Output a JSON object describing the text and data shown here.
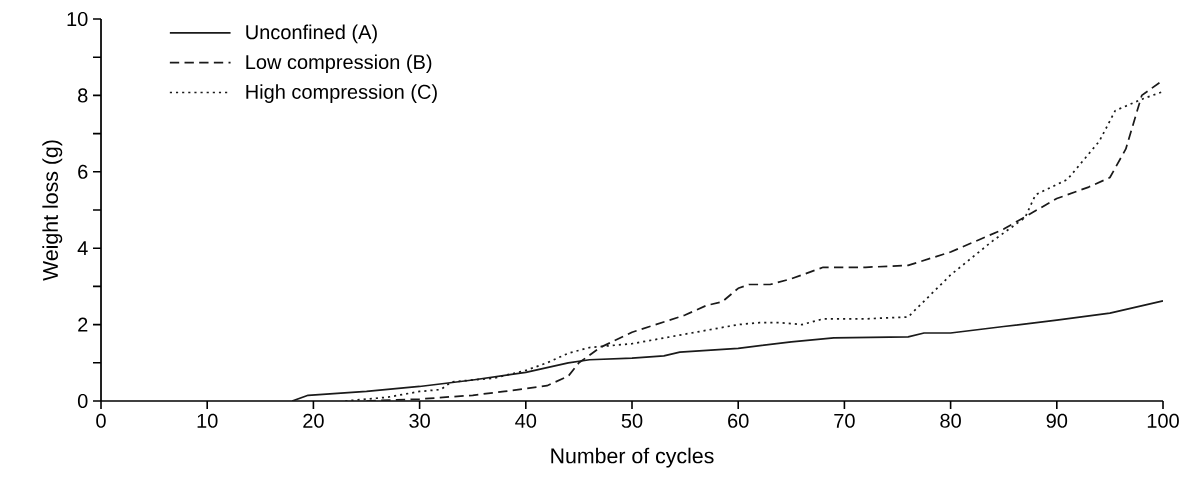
{
  "chart_data": {
    "type": "line",
    "xlabel": "Number of cycles",
    "ylabel": "Weight loss (g)",
    "xlim": [
      0,
      100
    ],
    "xticks": [
      0,
      10,
      20,
      30,
      40,
      50,
      60,
      70,
      80,
      90,
      100
    ],
    "ylim": [
      0,
      10
    ],
    "yticks": [
      0,
      {
        "value": 1,
        "label": null
      },
      2,
      {
        "value": 3,
        "label": null
      },
      4,
      {
        "value": 5,
        "label": null
      },
      6,
      {
        "value": 7,
        "label": null
      },
      8,
      {
        "value": 9,
        "label": null
      },
      10
    ],
    "legend": "top left",
    "series": [
      {
        "name": "Unconfined (A)",
        "color": "#1a1a1a",
        "line_style": "solid",
        "x": [
          18,
          19.5,
          25,
          30,
          35,
          40,
          44,
          46,
          50,
          53,
          54.5,
          60,
          65,
          69,
          76,
          77.5,
          80,
          85,
          90,
          95,
          100
        ],
        "values": [
          0,
          0.15,
          0.25,
          0.38,
          0.55,
          0.75,
          1.0,
          1.08,
          1.12,
          1.18,
          1.28,
          1.38,
          1.55,
          1.65,
          1.68,
          1.78,
          1.78,
          1.95,
          2.12,
          2.3,
          2.62
        ]
      },
      {
        "name": "Low compression (B)",
        "color": "#1a1a1a",
        "line_style": "dashed",
        "x": [
          25,
          30,
          35,
          38,
          42,
          44,
          45,
          47,
          50,
          55,
          57,
          58.5,
          60,
          61,
          63,
          65,
          68,
          72,
          76,
          80,
          85,
          90,
          93,
          95,
          96.5,
          98,
          100
        ],
        "values": [
          0,
          0.05,
          0.15,
          0.25,
          0.4,
          0.65,
          1.0,
          1.4,
          1.8,
          2.25,
          2.5,
          2.6,
          2.95,
          3.05,
          3.05,
          3.2,
          3.5,
          3.5,
          3.55,
          3.9,
          4.5,
          5.3,
          5.6,
          5.85,
          6.6,
          8.0,
          8.4
        ]
      },
      {
        "name": "High compression (C)",
        "color": "#1a1a1a",
        "line_style": "dotted",
        "x": [
          23,
          27,
          30,
          32,
          33,
          37,
          40,
          42,
          44,
          46,
          50,
          55,
          60,
          62,
          64,
          66,
          68,
          72,
          76,
          80,
          84,
          87,
          88,
          91,
          94,
          95.5,
          98,
          100
        ],
        "values": [
          0,
          0.1,
          0.25,
          0.3,
          0.5,
          0.6,
          0.8,
          1.0,
          1.25,
          1.4,
          1.5,
          1.75,
          2.0,
          2.05,
          2.05,
          2.0,
          2.15,
          2.15,
          2.2,
          3.3,
          4.2,
          4.8,
          5.4,
          5.8,
          6.8,
          7.6,
          7.9,
          8.1
        ]
      }
    ]
  }
}
